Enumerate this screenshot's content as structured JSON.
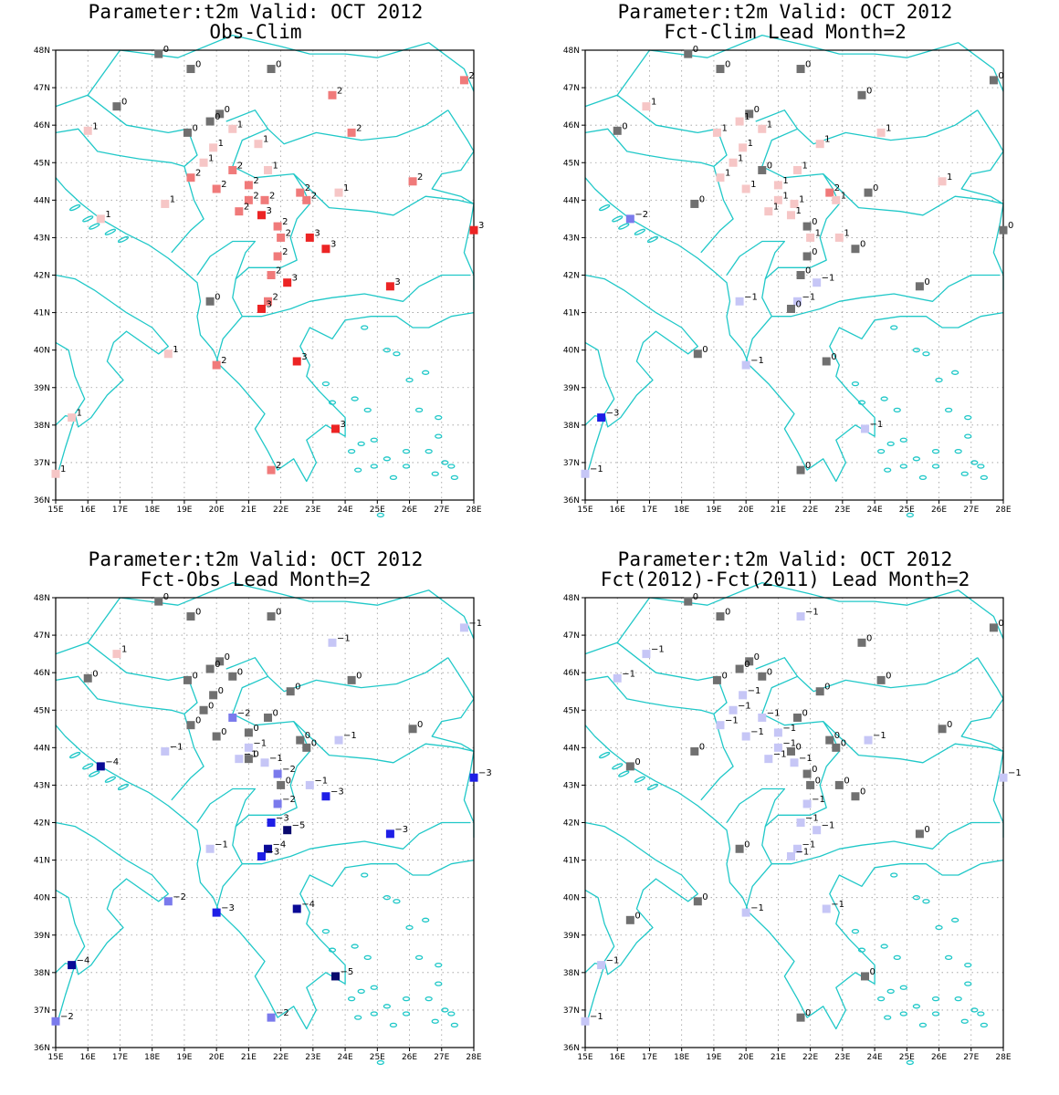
{
  "colors": {
    "coast": "#20c8c8",
    "grid": "#9a9a9a",
    "scale": {
      "-5": "#0a0a6e",
      "-4": "#0a0a96",
      "-3": "#1e1ee6",
      "-2": "#7a7aec",
      "-1": "#c6c6f6",
      "0": "#707070",
      "1": "#f6c6c6",
      "2": "#f07a7a",
      "3": "#ec2424"
    }
  },
  "axes": {
    "lon_ticks": [
      "15E",
      "16E",
      "17E",
      "18E",
      "19E",
      "20E",
      "21E",
      "22E",
      "23E",
      "24E",
      "25E",
      "26E",
      "27E",
      "28E"
    ],
    "lat_ticks": [
      "36N",
      "37N",
      "38N",
      "39N",
      "40N",
      "41N",
      "42N",
      "43N",
      "44N",
      "45N",
      "46N",
      "47N",
      "48N"
    ],
    "lon_range": [
      15,
      28
    ],
    "lat_range": [
      36,
      48
    ]
  },
  "panels": [
    {
      "title1": "Parameter:t2m Valid: OCT 2012",
      "title2": "Obs-Clim",
      "stations": [
        [
          18.2,
          47.9,
          0
        ],
        [
          19.2,
          47.5,
          0
        ],
        [
          21.7,
          47.5,
          0
        ],
        [
          27.7,
          47.2,
          2
        ],
        [
          16.9,
          46.5,
          0
        ],
        [
          23.6,
          46.8,
          2
        ],
        [
          20.1,
          46.3,
          0
        ],
        [
          19.8,
          46.1,
          0
        ],
        [
          20.5,
          45.9,
          1
        ],
        [
          16.0,
          45.85,
          1
        ],
        [
          19.1,
          45.8,
          0
        ],
        [
          24.2,
          45.8,
          2
        ],
        [
          19.9,
          45.4,
          1
        ],
        [
          21.3,
          45.5,
          1
        ],
        [
          19.6,
          45.0,
          1
        ],
        [
          20.5,
          44.8,
          2
        ],
        [
          21.6,
          44.8,
          1
        ],
        [
          19.2,
          44.6,
          2
        ],
        [
          26.1,
          44.5,
          2
        ],
        [
          21.0,
          44.4,
          2
        ],
        [
          20.0,
          44.3,
          2
        ],
        [
          22.6,
          44.2,
          2
        ],
        [
          22.8,
          44.0,
          2
        ],
        [
          23.8,
          44.2,
          1
        ],
        [
          21.0,
          44.0,
          2
        ],
        [
          21.5,
          44.0,
          2
        ],
        [
          18.4,
          43.9,
          1
        ],
        [
          20.7,
          43.7,
          2
        ],
        [
          21.4,
          43.6,
          3
        ],
        [
          16.4,
          43.5,
          1
        ],
        [
          21.9,
          43.3,
          2
        ],
        [
          22.0,
          43.0,
          2
        ],
        [
          22.9,
          43.0,
          3
        ],
        [
          28.0,
          43.2,
          3
        ],
        [
          23.4,
          42.7,
          3
        ],
        [
          21.9,
          42.5,
          2
        ],
        [
          21.7,
          42.0,
          2
        ],
        [
          22.2,
          41.8,
          3
        ],
        [
          25.4,
          41.7,
          3
        ],
        [
          19.8,
          41.3,
          0
        ],
        [
          21.6,
          41.3,
          2
        ],
        [
          21.4,
          41.1,
          3
        ],
        [
          18.5,
          39.9,
          1
        ],
        [
          20.0,
          39.6,
          2
        ],
        [
          22.5,
          39.7,
          3
        ],
        [
          15.5,
          38.2,
          1
        ],
        [
          23.7,
          37.9,
          3
        ],
        [
          15.0,
          36.7,
          1
        ],
        [
          21.7,
          36.8,
          2
        ]
      ]
    },
    {
      "title1": "Parameter:t2m Valid: OCT 2012",
      "title2": "Fct-Clim Lead Month=2",
      "stations": [
        [
          18.2,
          47.9,
          0
        ],
        [
          19.2,
          47.5,
          0
        ],
        [
          21.7,
          47.5,
          0
        ],
        [
          27.7,
          47.2,
          0
        ],
        [
          16.9,
          46.5,
          1
        ],
        [
          23.6,
          46.8,
          0
        ],
        [
          20.1,
          46.3,
          0
        ],
        [
          19.8,
          46.1,
          1
        ],
        [
          20.5,
          45.9,
          1
        ],
        [
          16.0,
          45.85,
          0
        ],
        [
          19.1,
          45.8,
          1
        ],
        [
          24.2,
          45.8,
          1
        ],
        [
          19.9,
          45.4,
          1
        ],
        [
          22.3,
          45.5,
          1
        ],
        [
          19.6,
          45.0,
          1
        ],
        [
          20.5,
          44.8,
          0
        ],
        [
          21.6,
          44.8,
          1
        ],
        [
          19.2,
          44.6,
          1
        ],
        [
          26.1,
          44.5,
          1
        ],
        [
          21.0,
          44.4,
          1
        ],
        [
          20.0,
          44.3,
          1
        ],
        [
          22.6,
          44.2,
          2
        ],
        [
          22.8,
          44.0,
          1
        ],
        [
          23.8,
          44.2,
          0
        ],
        [
          21.0,
          44.0,
          1
        ],
        [
          21.5,
          43.9,
          1
        ],
        [
          18.4,
          43.9,
          0
        ],
        [
          20.7,
          43.7,
          1
        ],
        [
          21.4,
          43.6,
          1
        ],
        [
          16.4,
          43.5,
          -2
        ],
        [
          21.9,
          43.3,
          0
        ],
        [
          22.0,
          43.0,
          1
        ],
        [
          22.9,
          43.0,
          1
        ],
        [
          28.0,
          43.2,
          0
        ],
        [
          23.4,
          42.7,
          0
        ],
        [
          21.9,
          42.5,
          0
        ],
        [
          21.7,
          42.0,
          0
        ],
        [
          22.2,
          41.8,
          -1
        ],
        [
          25.4,
          41.7,
          0
        ],
        [
          19.8,
          41.3,
          -1
        ],
        [
          21.6,
          41.3,
          -1
        ],
        [
          21.4,
          41.1,
          0
        ],
        [
          18.5,
          39.9,
          0
        ],
        [
          20.0,
          39.6,
          -1
        ],
        [
          22.5,
          39.7,
          0
        ],
        [
          15.5,
          38.2,
          -3
        ],
        [
          23.7,
          37.9,
          -1
        ],
        [
          15.0,
          36.7,
          -1
        ],
        [
          21.7,
          36.8,
          0
        ]
      ]
    },
    {
      "title1": "Parameter:t2m Valid: OCT 2012",
      "title2": "Fct-Obs Lead Month=2",
      "stations": [
        [
          18.2,
          47.9,
          0
        ],
        [
          19.2,
          47.5,
          0
        ],
        [
          21.7,
          47.5,
          0
        ],
        [
          27.7,
          47.2,
          -1
        ],
        [
          16.9,
          46.5,
          1
        ],
        [
          23.6,
          46.8,
          -1
        ],
        [
          20.1,
          46.3,
          0
        ],
        [
          19.8,
          46.1,
          0
        ],
        [
          20.5,
          45.9,
          0
        ],
        [
          16.0,
          45.85,
          0
        ],
        [
          19.1,
          45.8,
          0
        ],
        [
          24.2,
          45.8,
          0
        ],
        [
          19.9,
          45.4,
          0
        ],
        [
          22.3,
          45.5,
          0
        ],
        [
          19.6,
          45.0,
          0
        ],
        [
          20.5,
          44.8,
          -2
        ],
        [
          21.6,
          44.8,
          0
        ],
        [
          19.2,
          44.6,
          0
        ],
        [
          26.1,
          44.5,
          0
        ],
        [
          21.0,
          44.4,
          0
        ],
        [
          20.0,
          44.3,
          0
        ],
        [
          22.6,
          44.2,
          0
        ],
        [
          22.8,
          44.0,
          0
        ],
        [
          23.8,
          44.2,
          -1
        ],
        [
          21.0,
          44.0,
          -1
        ],
        [
          21.5,
          43.6,
          -1
        ],
        [
          18.4,
          43.9,
          -1
        ],
        [
          20.7,
          43.7,
          -1
        ],
        [
          21.0,
          43.7,
          0
        ],
        [
          16.4,
          43.5,
          -4
        ],
        [
          21.9,
          43.3,
          -2
        ],
        [
          22.0,
          43.0,
          0
        ],
        [
          22.9,
          43.0,
          -1
        ],
        [
          28.0,
          43.2,
          -3
        ],
        [
          23.4,
          42.7,
          -3
        ],
        [
          21.9,
          42.5,
          -2
        ],
        [
          21.7,
          42.0,
          -3
        ],
        [
          22.2,
          41.8,
          -5
        ],
        [
          25.4,
          41.7,
          -3
        ],
        [
          19.8,
          41.3,
          -1
        ],
        [
          21.6,
          41.3,
          -4
        ],
        [
          21.4,
          41.1,
          -3
        ],
        [
          18.5,
          39.9,
          -2
        ],
        [
          20.0,
          39.6,
          -3
        ],
        [
          22.5,
          39.7,
          -4
        ],
        [
          15.5,
          38.2,
          -4
        ],
        [
          23.7,
          37.9,
          -5
        ],
        [
          15.0,
          36.7,
          -2
        ],
        [
          21.7,
          36.8,
          -2
        ]
      ]
    },
    {
      "title1": "Parameter:t2m Valid: OCT 2012",
      "title2": "Fct(2012)-Fct(2011) Lead Month=2",
      "stations": [
        [
          18.2,
          47.9,
          0
        ],
        [
          19.2,
          47.5,
          0
        ],
        [
          21.7,
          47.5,
          -1
        ],
        [
          27.7,
          47.2,
          0
        ],
        [
          16.9,
          46.5,
          -1
        ],
        [
          23.6,
          46.8,
          0
        ],
        [
          20.1,
          46.3,
          0
        ],
        [
          19.8,
          46.1,
          0
        ],
        [
          20.5,
          45.9,
          0
        ],
        [
          16.0,
          45.85,
          -1
        ],
        [
          19.1,
          45.8,
          0
        ],
        [
          24.2,
          45.8,
          0
        ],
        [
          19.9,
          45.4,
          -1
        ],
        [
          22.3,
          45.5,
          0
        ],
        [
          19.6,
          45.0,
          -1
        ],
        [
          20.5,
          44.8,
          -1
        ],
        [
          21.6,
          44.8,
          0
        ],
        [
          19.2,
          44.6,
          -1
        ],
        [
          26.1,
          44.5,
          0
        ],
        [
          21.0,
          44.4,
          -1
        ],
        [
          20.0,
          44.3,
          -1
        ],
        [
          22.6,
          44.2,
          0
        ],
        [
          22.8,
          44.0,
          0
        ],
        [
          23.8,
          44.2,
          -1
        ],
        [
          21.0,
          44.0,
          -1
        ],
        [
          21.5,
          43.6,
          -1
        ],
        [
          18.4,
          43.9,
          0
        ],
        [
          20.7,
          43.7,
          -1
        ],
        [
          21.4,
          43.9,
          0
        ],
        [
          16.4,
          43.5,
          0
        ],
        [
          21.9,
          43.3,
          0
        ],
        [
          22.0,
          43.0,
          0
        ],
        [
          22.9,
          43.0,
          0
        ],
        [
          28.0,
          43.2,
          -1
        ],
        [
          23.4,
          42.7,
          0
        ],
        [
          21.9,
          42.5,
          -1
        ],
        [
          21.7,
          42.0,
          -1
        ],
        [
          22.2,
          41.8,
          -1
        ],
        [
          25.4,
          41.7,
          0
        ],
        [
          19.8,
          41.3,
          0
        ],
        [
          21.6,
          41.3,
          -1
        ],
        [
          21.4,
          41.1,
          -1
        ],
        [
          18.5,
          39.9,
          0
        ],
        [
          20.0,
          39.6,
          -1
        ],
        [
          22.5,
          39.7,
          -1
        ],
        [
          15.5,
          38.2,
          -1
        ],
        [
          23.7,
          37.9,
          0
        ],
        [
          15.0,
          36.7,
          -1
        ],
        [
          21.7,
          36.8,
          0
        ],
        [
          16.4,
          39.4,
          0
        ]
      ]
    }
  ]
}
